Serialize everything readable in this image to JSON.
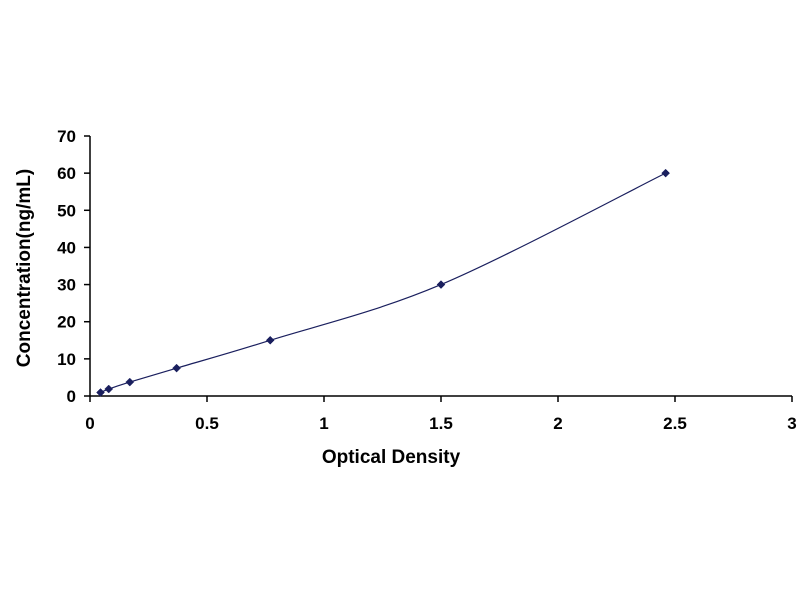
{
  "chart_data": {
    "type": "scatter",
    "title": "",
    "xlabel": "Optical Density",
    "ylabel": "Concentration(ng/mL)",
    "xlim": [
      0,
      3
    ],
    "ylim": [
      0,
      70
    ],
    "xticks": [
      0,
      0.5,
      1,
      1.5,
      2,
      2.5,
      3
    ],
    "xtick_labels": [
      "0",
      "0.5",
      "1",
      "1.5",
      "2",
      "2.5",
      "3"
    ],
    "yticks": [
      0,
      10,
      20,
      30,
      40,
      50,
      60,
      70
    ],
    "ytick_labels": [
      "0",
      "10",
      "20",
      "30",
      "40",
      "50",
      "60",
      "70"
    ],
    "grid": false,
    "legend": "none",
    "series": [
      {
        "x": [
          0.045,
          0.08,
          0.17,
          0.37,
          0.77,
          1.5,
          2.46
        ],
        "y": [
          0.94,
          1.88,
          3.75,
          7.5,
          15,
          30,
          60
        ],
        "marker": "diamond",
        "fit_line": "smooth-curve"
      }
    ],
    "colors": {
      "marker": "#1a1f5e",
      "line": "#1a1f5e",
      "axis": "#000000"
    }
  }
}
